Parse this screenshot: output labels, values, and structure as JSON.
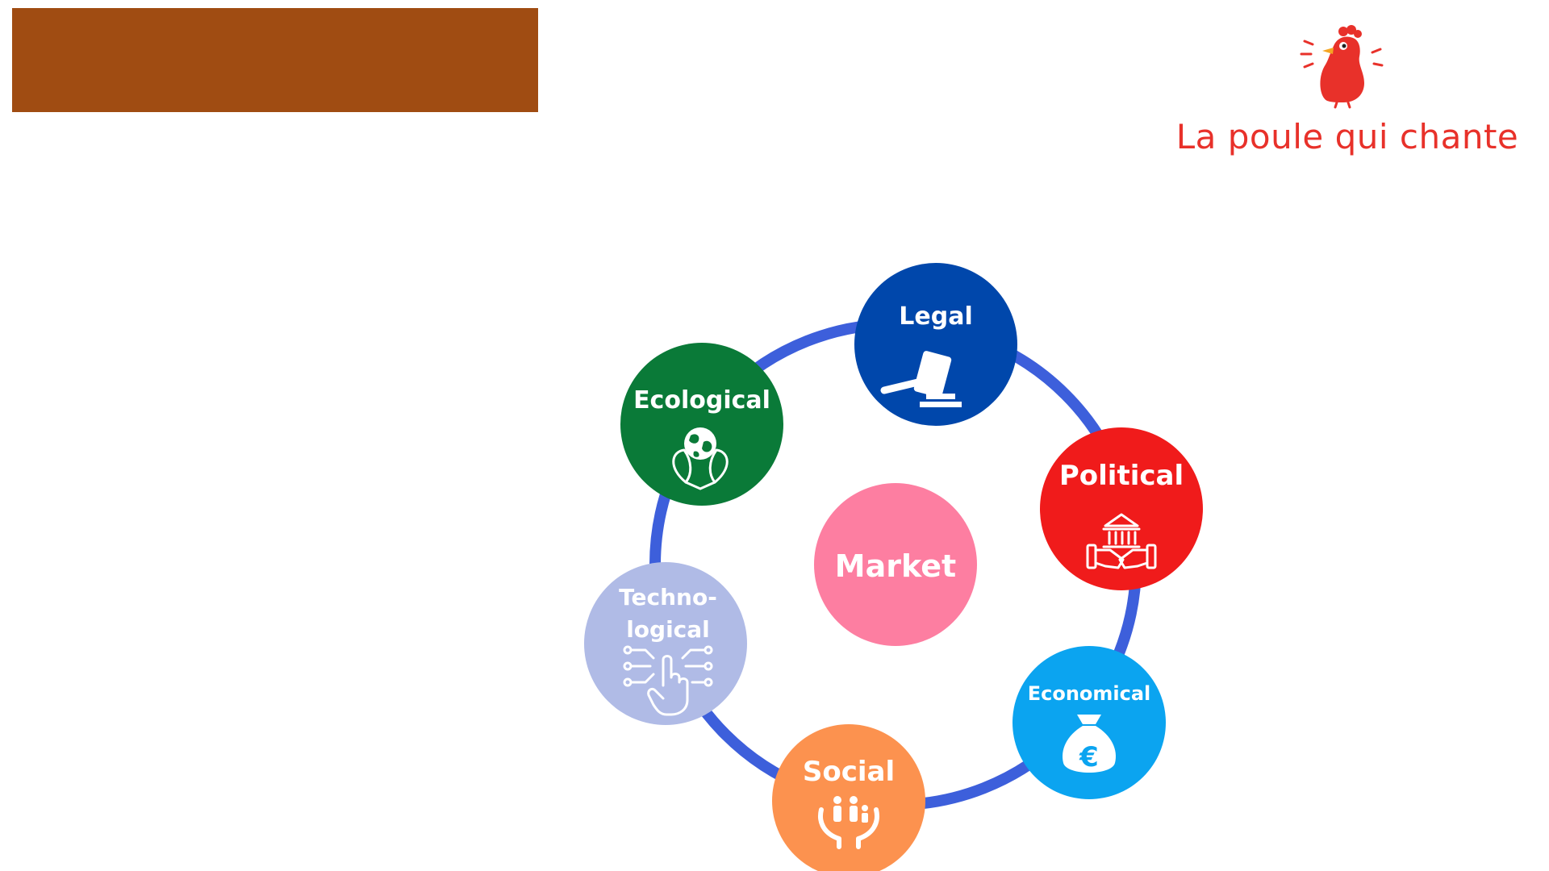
{
  "brand": {
    "name": "La poule qui chante",
    "color": "#e8312a"
  },
  "banner": {
    "color": "#a04c12"
  },
  "diagram": {
    "ring_color": "#3d5fdb",
    "center": {
      "label": "Market",
      "color": "#fd7ea1"
    },
    "nodes": [
      {
        "id": "legal",
        "label_lines": [
          "Legal"
        ],
        "color": "#0047ab",
        "icon": "gavel-icon"
      },
      {
        "id": "political",
        "label_lines": [
          "Political"
        ],
        "color": "#f01b1b",
        "icon": "parliament-handshake-icon"
      },
      {
        "id": "economical",
        "label_lines": [
          "Economical"
        ],
        "color": "#0ba4f0",
        "icon": "euro-money-bag-icon"
      },
      {
        "id": "social",
        "label_lines": [
          "Social"
        ],
        "color": "#fc924f",
        "icon": "family-hands-icon"
      },
      {
        "id": "technological",
        "label_lines": [
          "Techno-",
          "logical"
        ],
        "color": "#b0bbe6",
        "icon": "tech-touch-icon"
      },
      {
        "id": "ecological",
        "label_lines": [
          "Ecological"
        ],
        "color": "#0a7a38",
        "icon": "earth-leaves-icon"
      }
    ]
  }
}
